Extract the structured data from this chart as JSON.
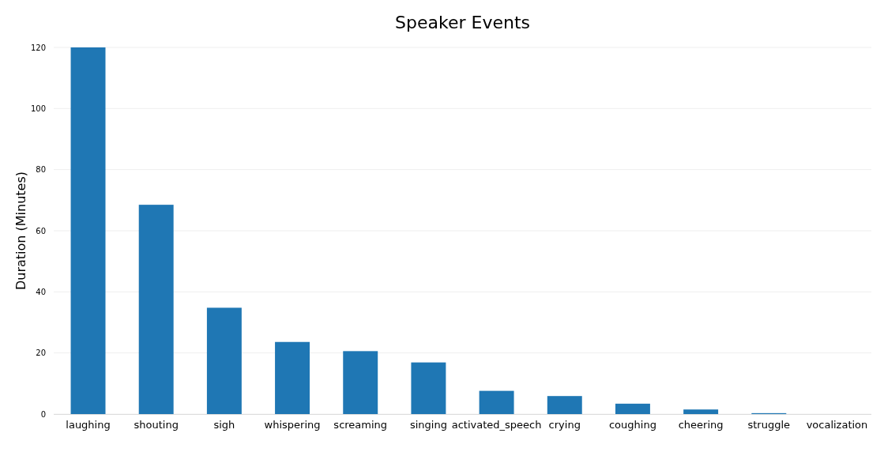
{
  "chart_data": {
    "type": "bar",
    "title": "Speaker Events",
    "ylabel": "Duration (Minutes)",
    "categories": [
      "laughing",
      "shouting",
      "sigh",
      "whispering",
      "screaming",
      "singing",
      "activated_speech",
      "crying",
      "coughing",
      "cheering",
      "struggle",
      "vocalization"
    ],
    "values": [
      120,
      68.5,
      34.8,
      23.6,
      20.6,
      16.9,
      7.6,
      5.9,
      3.4,
      1.5,
      0.3,
      0
    ],
    "color": "#1f77b4",
    "ylim": [
      0,
      120
    ],
    "yticks": [
      0,
      20,
      40,
      60,
      80,
      100,
      120
    ],
    "grid": "y"
  }
}
